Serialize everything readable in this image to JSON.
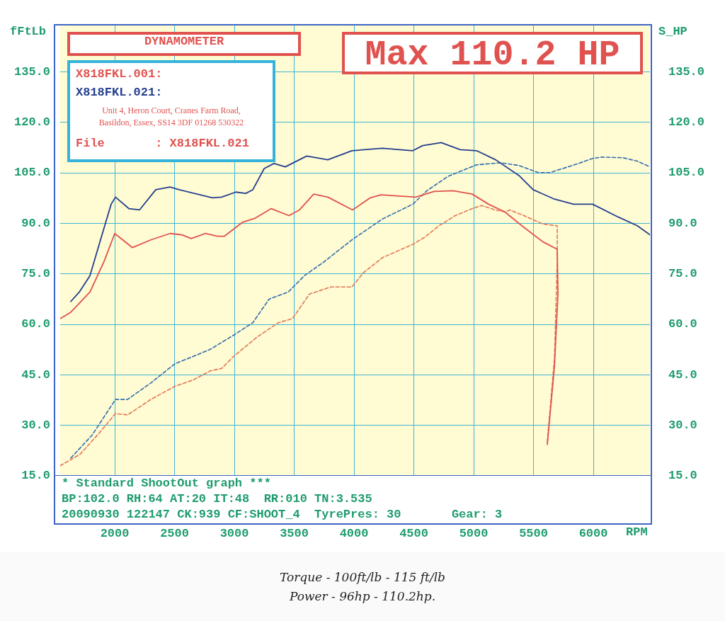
{
  "chart_data": {
    "type": "line",
    "title": "DYNAMOMETER",
    "xlabel": "RPM",
    "ylabel": "fFtLb",
    "y2label": "S_HP",
    "xlim": [
      1544,
      6473
    ],
    "xticks": [
      2000,
      2500,
      3000,
      3500,
      4000,
      4500,
      5000,
      5500,
      6000
    ],
    "ylim": [
      15,
      149
    ],
    "yticks": [
      {
        "value": 15,
        "label": "15.0"
      },
      {
        "value": 30,
        "label": "30.0"
      },
      {
        "value": 45,
        "label": "45.0"
      },
      {
        "value": 60,
        "label": "60.0"
      },
      {
        "value": 75,
        "label": "75.0"
      },
      {
        "value": 90,
        "label": "90.0"
      },
      {
        "value": 105,
        "label": "105.0"
      },
      {
        "value": 120,
        "label": "120.0"
      },
      {
        "value": 135,
        "label": "135.0"
      }
    ],
    "y2lim": [
      15,
      149
    ],
    "y2ticks": [
      {
        "value": 15,
        "label": "15.0"
      },
      {
        "value": 30,
        "label": "30.0"
      },
      {
        "value": 45,
        "label": "45.0"
      },
      {
        "value": 60,
        "label": "60.0"
      },
      {
        "value": 75,
        "label": "75.0"
      },
      {
        "value": 90,
        "label": "90.0"
      },
      {
        "value": 105,
        "label": "105.0"
      },
      {
        "value": 120,
        "label": "120.0"
      },
      {
        "value": 135,
        "label": "135.0"
      }
    ],
    "grid": true,
    "legend": "top left",
    "marker": "none",
    "series": [
      {
        "name": "X818FKL.001:",
        "color": "#e0524f",
        "line_style": "solid",
        "x": [
          1544,
          1633,
          1793,
          1911,
          2000,
          2148,
          2302,
          2462,
          2562,
          2639,
          2757,
          2858,
          2917,
          3071,
          3172,
          3308,
          3456,
          3544,
          3663,
          3781,
          3988,
          4136,
          4225,
          4515,
          4669,
          4828,
          4988,
          5124,
          5260,
          5402,
          5580,
          5698,
          5704,
          5675,
          5615
        ],
        "values": [
          61.7,
          63.6,
          69.6,
          78.7,
          87,
          82.8,
          85.1,
          87,
          86.6,
          85.5,
          87,
          86.2,
          86.2,
          90.4,
          91.5,
          94.4,
          92.3,
          94,
          98.7,
          97.8,
          94,
          97.6,
          98.5,
          97.8,
          99.5,
          99.7,
          98.7,
          95.7,
          93.4,
          89.3,
          84.5,
          82.3,
          69,
          47.7,
          24.3
        ]
      },
      {
        "name": "X818FKL.021:",
        "color": "#243f8f",
        "line_style": "solid",
        "x": [
          1633,
          1704,
          1793,
          1911,
          1970,
          2006,
          2118,
          2207,
          2343,
          2462,
          2538,
          2817,
          2893,
          3012,
          3095,
          3154,
          3249,
          3331,
          3426,
          3604,
          3781,
          3982,
          4237,
          4491,
          4574,
          4728,
          4888,
          5024,
          5183,
          5379,
          5497,
          5675,
          5834,
          5994,
          6207,
          6367,
          6473
        ],
        "values": [
          66.8,
          69.6,
          74.5,
          88.7,
          95.7,
          97.8,
          94.4,
          94,
          100,
          100.8,
          100,
          97.6,
          97.8,
          99.3,
          98.9,
          100,
          106.3,
          107.8,
          106.8,
          110,
          108.9,
          111.6,
          112.3,
          111.6,
          113.1,
          114,
          111.9,
          111.6,
          108.9,
          104.2,
          100,
          97.2,
          95.7,
          95.7,
          91.9,
          89.3,
          86.6
        ]
      },
      {
        "color": "#e27658",
        "line_style": "dashed",
        "x": [
          1544,
          1710,
          1870,
          2006,
          2107,
          2302,
          2503,
          2657,
          2799,
          2893,
          2994,
          3189,
          3367,
          3485,
          3627,
          3805,
          3982,
          4077,
          4237,
          4491,
          4592,
          4710,
          4846,
          4988,
          5065,
          5183,
          5260,
          5302,
          5420,
          5580,
          5698,
          5698,
          5675,
          5615
        ],
        "values": [
          18,
          21.4,
          27.7,
          33.5,
          33.1,
          37.7,
          41.6,
          43.5,
          46.2,
          46.9,
          50.5,
          56.2,
          60.5,
          61.7,
          69,
          71.1,
          71.1,
          75.3,
          79.8,
          83.8,
          85.9,
          89.3,
          92.3,
          94.4,
          95.3,
          94,
          93.4,
          94,
          92.3,
          89.8,
          89.3,
          78.7,
          49.8,
          25
        ]
      },
      {
        "color": "#2f6cb0",
        "line_style": "dashed",
        "x": [
          1633,
          1811,
          2006,
          2107,
          2302,
          2503,
          2698,
          2799,
          2994,
          3154,
          3290,
          3450,
          3586,
          3746,
          3982,
          4237,
          4491,
          4609,
          4787,
          5024,
          5225,
          5379,
          5538,
          5639,
          5876,
          5994,
          6071,
          6249,
          6367,
          6473
        ],
        "values": [
          20.3,
          27.1,
          37.7,
          37.7,
          42.6,
          48.3,
          51.1,
          52.6,
          56.8,
          60.5,
          67.5,
          69.6,
          74.5,
          78.5,
          85.1,
          91.3,
          95.7,
          99.7,
          104,
          107.4,
          108,
          107.2,
          105.1,
          105.1,
          107.8,
          109.3,
          109.7,
          109.5,
          108.5,
          106.8
        ]
      }
    ],
    "annotations": [
      "File       : X818FKL.021",
      "Unit 4, Heron Court, Cranes Farm Road,",
      "Basildon, Essex, SS14 3DF 01268 530322",
      "Max 110.2 HP",
      "* Standard ShootOut graph ***",
      "BP:102.0 RH:64 AT:20 IT:48  RR:010 TN:3.535",
      "20090930 122147 CK:939 CF:SHOOT_4  TyrePres: 30       Gear: 3",
      "Torque - 100ft/lb - 115 ft/lb",
      "Power - 96hp - 110.2hp."
    ]
  }
}
